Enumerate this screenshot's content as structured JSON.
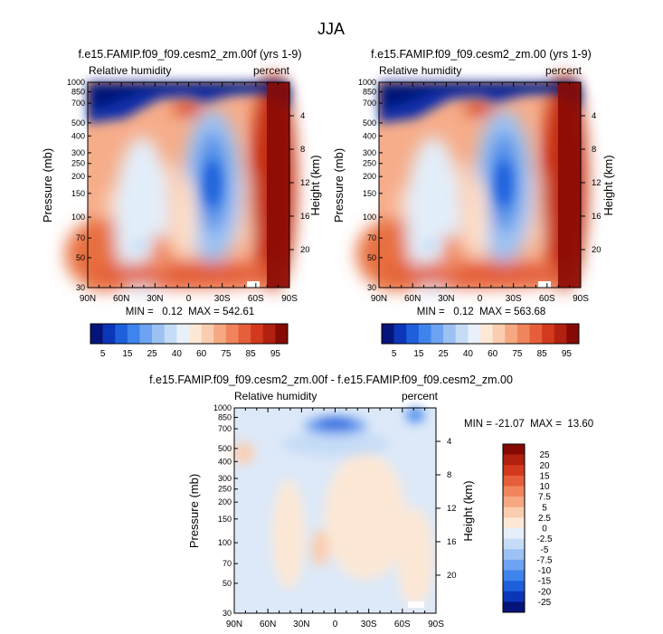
{
  "figure_title": "JJA",
  "colors": {
    "full_scale": [
      "#05147a",
      "#0b36b8",
      "#1e5fdc",
      "#3f84ec",
      "#6da3f1",
      "#9cc2f3",
      "#c6dcf6",
      "#e8f0fa",
      "#fde8d6",
      "#fbcdb0",
      "#f6a882",
      "#f0855d",
      "#e65e3a",
      "#d3391e",
      "#b2200f",
      "#860a04"
    ],
    "diff_scale": [
      "#05147a",
      "#0b36b8",
      "#1e5fdc",
      "#3f84ec",
      "#6da3f1",
      "#9cc2f3",
      "#c6dcf6",
      "#e6eefa",
      "#fde8d6",
      "#fbcdb0",
      "#f6a882",
      "#f0855d",
      "#e65e3a",
      "#d3391e",
      "#b2200f",
      "#860a04"
    ]
  },
  "chart_data": [
    {
      "type": "heatmap",
      "title": "f.e15.FAMIP.f09_f09.cesm2_zm.00f (yrs 1-9)",
      "left_label": "Relative humidity",
      "right_label": "percent",
      "xlabel": "",
      "ylabel": "Pressure (mb)",
      "ylabel_right": "Height (km)",
      "x_ticks": [
        "90N",
        "60N",
        "30N",
        "0",
        "30S",
        "60S",
        "90S"
      ],
      "x_values": [
        90,
        60,
        30,
        0,
        -30,
        -60,
        -90
      ],
      "y_ticks": [
        "30",
        "50",
        "70",
        "100",
        "150",
        "200",
        "250",
        "300",
        "400",
        "500",
        "700",
        "850",
        "1000"
      ],
      "y_values": [
        30,
        50,
        70,
        100,
        150,
        200,
        250,
        300,
        400,
        500,
        700,
        850,
        1000
      ],
      "y_right_ticks": [
        "20",
        "16",
        "12",
        "8",
        "4"
      ],
      "y_right_values": [
        20,
        16,
        12,
        8,
        4
      ],
      "ylim": [
        1000,
        30
      ],
      "stats": "MIN =   0.12  MAX = 542.61",
      "min": 0.12,
      "max": 542.61,
      "colorbar_labels": [
        "5",
        "15",
        "25",
        "40",
        "60",
        "75",
        "85",
        "95"
      ]
    },
    {
      "type": "heatmap",
      "title": "f.e15.FAMIP.f09_f09.cesm2_zm.00 (yrs 1-9)",
      "left_label": "Relative humidity",
      "right_label": "percent",
      "xlabel": "",
      "ylabel": "Pressure (mb)",
      "ylabel_right": "Height (km)",
      "x_ticks": [
        "90N",
        "60N",
        "30N",
        "0",
        "30S",
        "60S",
        "90S"
      ],
      "x_values": [
        90,
        60,
        30,
        0,
        -30,
        -60,
        -90
      ],
      "y_ticks": [
        "30",
        "50",
        "70",
        "100",
        "150",
        "200",
        "250",
        "300",
        "400",
        "500",
        "700",
        "850",
        "1000"
      ],
      "y_values": [
        30,
        50,
        70,
        100,
        150,
        200,
        250,
        300,
        400,
        500,
        700,
        850,
        1000
      ],
      "y_right_ticks": [
        "20",
        "16",
        "12",
        "8",
        "4"
      ],
      "y_right_values": [
        20,
        16,
        12,
        8,
        4
      ],
      "ylim": [
        1000,
        30
      ],
      "stats": "MIN =   0.12  MAX = 563.68",
      "min": 0.12,
      "max": 563.68,
      "colorbar_labels": [
        "5",
        "15",
        "25",
        "40",
        "60",
        "75",
        "85",
        "95"
      ]
    },
    {
      "type": "heatmap",
      "title": "f.e15.FAMIP.f09_f09.cesm2_zm.00f - f.e15.FAMIP.f09_f09.cesm2_zm.00",
      "left_label": "Relative humidity",
      "right_label": "percent",
      "xlabel": "",
      "ylabel": "Pressure (mb)",
      "ylabel_right": "Height (km)",
      "x_ticks": [
        "90N",
        "60N",
        "30N",
        "0",
        "30S",
        "60S",
        "90S"
      ],
      "x_values": [
        90,
        60,
        30,
        0,
        -30,
        -60,
        -90
      ],
      "y_ticks": [
        "30",
        "50",
        "70",
        "100",
        "150",
        "200",
        "250",
        "300",
        "400",
        "500",
        "700",
        "850",
        "1000"
      ],
      "y_values": [
        30,
        50,
        70,
        100,
        150,
        200,
        250,
        300,
        400,
        500,
        700,
        850,
        1000
      ],
      "y_right_ticks": [
        "20",
        "16",
        "12",
        "8",
        "4"
      ],
      "y_right_values": [
        20,
        16,
        12,
        8,
        4
      ],
      "ylim": [
        1000,
        30
      ],
      "stats": "MIN = -21.07  MAX =  13.60",
      "min": -21.07,
      "max": 13.6,
      "colorbar_labels": [
        "25",
        "20",
        "15",
        "10",
        "7.5",
        "5",
        "2.5",
        "0",
        "-2.5",
        "-5",
        "-7.5",
        "-10",
        "-15",
        "-20",
        "-25"
      ]
    }
  ]
}
